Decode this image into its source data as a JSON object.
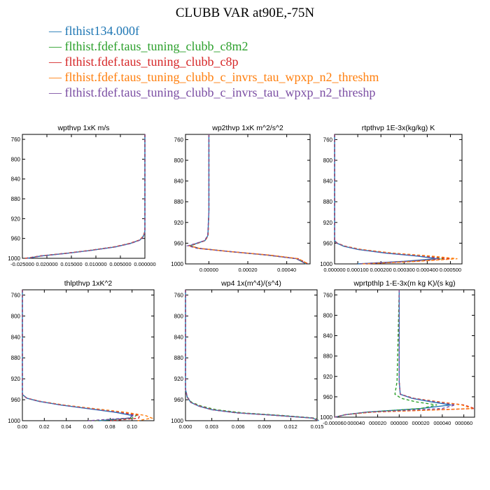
{
  "title": "CLUBB VAR at90E,-75N",
  "colors": [
    "#1f77b4",
    "#2ca02c",
    "#d62728",
    "#ff7f0e",
    "#7b4ea3"
  ],
  "legend": [
    {
      "label": "flthist134.000f",
      "color": "#1f77b4"
    },
    {
      "label": "flthist.fdef.taus_tuning_clubb_c8m2",
      "color": "#2ca02c"
    },
    {
      "label": "flthist.fdef.taus_tuning_clubb_c8p",
      "color": "#d62728"
    },
    {
      "label": "flthist.fdef.taus_tuning_clubb_c_invrs_tau_wpxp_n2_threshm",
      "color": "#ff7f0e"
    },
    {
      "label": "flthist.fdef.taus_tuning_clubb_c_invrs_tau_wpxp_n2_threshp",
      "color": "#7b4ea3"
    }
  ],
  "chart_data": [
    {
      "type": "line",
      "title": "wpthvp  1xK m/s",
      "xlim": [
        -0.025,
        0.0
      ],
      "ylim": [
        1000,
        750
      ],
      "x_ticks": [
        -0.025,
        -0.02,
        -0.015,
        -0.01,
        -0.005,
        0.0
      ],
      "x_tick_labels": [
        "-0.025000",
        "0.020000",
        "0.015000",
        "0.010000",
        "0.005000",
        "0.000000"
      ],
      "y_ticks": [
        760,
        800,
        840,
        880,
        920,
        960,
        1000
      ],
      "y": [
        750,
        900,
        945,
        955,
        963,
        970,
        977,
        984,
        990,
        995,
        1000
      ],
      "series": [
        {
          "values": [
            0.0,
            0.0,
            0.0,
            -0.0003,
            -0.001,
            -0.003,
            -0.006,
            -0.011,
            -0.016,
            -0.021,
            -0.024
          ]
        },
        {
          "values": [
            0.0,
            0.0,
            0.0,
            -0.0003,
            -0.001,
            -0.0031,
            -0.0062,
            -0.0112,
            -0.0162,
            -0.0212,
            -0.0243
          ]
        },
        {
          "values": [
            0.0,
            0.0,
            0.0,
            -0.0003,
            -0.0011,
            -0.0032,
            -0.0063,
            -0.0113,
            -0.0163,
            -0.0213,
            -0.0244
          ]
        },
        {
          "values": [
            0.0,
            0.0,
            0.0,
            -0.0003,
            -0.001,
            -0.003,
            -0.0061,
            -0.0111,
            -0.0161,
            -0.0211,
            -0.0242
          ]
        },
        {
          "values": [
            0.0,
            0.0,
            0.0,
            -0.0002,
            -0.0009,
            -0.0029,
            -0.006,
            -0.011,
            -0.016,
            -0.021,
            -0.0241
          ]
        }
      ]
    },
    {
      "type": "line",
      "title": "wp2thvp  1xK m^2/s^2",
      "xlim": [
        -0.00012,
        0.00052
      ],
      "ylim": [
        1000,
        750
      ],
      "x_ticks": [
        0.0,
        0.0002,
        0.0004
      ],
      "x_tick_labels": [
        "0.00000",
        "0.00020",
        "0.00040"
      ],
      "y_ticks": [
        760,
        800,
        840,
        880,
        920,
        960,
        1000
      ],
      "y": [
        750,
        900,
        945,
        955,
        960,
        965,
        970,
        976,
        983,
        990,
        1000
      ],
      "series": [
        {
          "values": [
            0.0,
            0.0,
            -5e-06,
            -2e-05,
            -6e-05,
            -0.0001,
            -5e-05,
            0.0001,
            0.0003,
            0.00045,
            0.0005
          ]
        },
        {
          "values": [
            0.0,
            0.0,
            -4e-06,
            -1.8e-05,
            -5.5e-05,
            -9.5e-05,
            -5e-05,
            0.0001,
            0.0003,
            0.00045,
            0.0005
          ]
        },
        {
          "values": [
            0.0,
            0.0,
            -4e-06,
            -1.9e-05,
            -5.8e-05,
            -9.8e-05,
            -5e-05,
            0.0001,
            0.00031,
            0.00046,
            0.00051
          ]
        },
        {
          "values": [
            0.0,
            0.0,
            -5e-06,
            -2.1e-05,
            -6e-05,
            -0.000102,
            -5e-05,
            0.0001,
            0.00031,
            0.00046,
            0.00051
          ]
        },
        {
          "values": [
            0.0,
            0.0,
            -6e-06,
            -2.2e-05,
            -6.2e-05,
            -0.000108,
            -6e-05,
            0.0001,
            0.0003,
            0.00045,
            0.0005
          ]
        }
      ]
    },
    {
      "type": "line",
      "title": "rtpthvp  1E-3x(kg/kg) K",
      "xlim": [
        0.0,
        0.00055
      ],
      "ylim": [
        1000,
        750
      ],
      "x_ticks": [
        0.0,
        0.0001,
        0.0002,
        0.0003,
        0.0004,
        0.0005
      ],
      "x_tick_labels": [
        "0.000000",
        "0.000100",
        "0.000200",
        "0.000300",
        "0.000400",
        "0.000500"
      ],
      "y_ticks": [
        760,
        800,
        840,
        880,
        920,
        960,
        1000
      ],
      "y": [
        750,
        900,
        955,
        960,
        966,
        972,
        979,
        985,
        990,
        995,
        1000
      ],
      "series": [
        {
          "values": [
            0.0,
            0.0,
            0.0,
            1e-05,
            4e-05,
            0.0001,
            0.00022,
            0.00036,
            0.00044,
            0.0003,
            0.0001
          ]
        },
        {
          "values": [
            0.0,
            0.0,
            0.0,
            1e-05,
            4.2e-05,
            0.000105,
            0.00023,
            0.00038,
            0.00047,
            0.00032,
            0.00011
          ]
        },
        {
          "values": [
            0.0,
            0.0,
            0.0,
            1e-05,
            4.5e-05,
            0.00011,
            0.00024,
            0.0004,
            0.0005,
            0.00035,
            0.00012
          ]
        },
        {
          "values": [
            0.0,
            0.0,
            0.0,
            1.2e-05,
            4.8e-05,
            0.000115,
            0.00025,
            0.00042,
            0.00053,
            0.00036,
            0.00012
          ]
        },
        {
          "values": [
            0.0,
            0.0,
            0.0,
            1.1e-05,
            4.3e-05,
            0.000102,
            0.00022,
            0.00037,
            0.00045,
            0.00031,
            0.0001
          ]
        }
      ]
    },
    {
      "type": "line",
      "title": "thlpthvp  1xK^2",
      "xlim": [
        0.0,
        0.12
      ],
      "ylim": [
        1000,
        750
      ],
      "x_ticks": [
        0.0,
        0.02,
        0.04,
        0.06,
        0.08,
        0.1
      ],
      "x_tick_labels": [
        "0.00",
        "0.02",
        "0.04",
        "0.06",
        "0.08",
        "0.10"
      ],
      "y_ticks": [
        760,
        800,
        840,
        880,
        920,
        960,
        1000
      ],
      "y": [
        750,
        930,
        950,
        957,
        963,
        970,
        977,
        984,
        990,
        995,
        1000
      ],
      "series": [
        {
          "values": [
            0.0,
            0.0,
            0.0,
            0.004,
            0.015,
            0.035,
            0.06,
            0.085,
            0.1,
            0.098,
            0.07
          ]
        },
        {
          "values": [
            0.0,
            0.0,
            0.0,
            0.004,
            0.015,
            0.036,
            0.062,
            0.088,
            0.104,
            0.1,
            0.065
          ]
        },
        {
          "values": [
            0.0,
            0.0,
            0.0,
            0.004,
            0.016,
            0.037,
            0.064,
            0.09,
            0.107,
            0.106,
            0.08
          ]
        },
        {
          "values": [
            0.0,
            0.0,
            0.0,
            0.004,
            0.016,
            0.038,
            0.066,
            0.094,
            0.112,
            0.118,
            0.105
          ]
        },
        {
          "values": [
            0.0,
            0.0,
            0.0,
            0.004,
            0.015,
            0.035,
            0.061,
            0.087,
            0.102,
            0.096,
            0.06
          ]
        }
      ]
    },
    {
      "type": "line",
      "title": "wp4  1x(m^4)/(s^4)",
      "xlim": [
        0.0,
        0.015
      ],
      "ylim": [
        1000,
        750
      ],
      "x_ticks": [
        0.0,
        0.003,
        0.006,
        0.009,
        0.012,
        0.015
      ],
      "x_tick_labels": [
        "0.000",
        "0.003",
        "0.006",
        "0.009",
        "0.012",
        "0.015"
      ],
      "y_ticks": [
        760,
        800,
        840,
        880,
        920,
        960,
        1000
      ],
      "y": [
        750,
        940,
        955,
        965,
        972,
        979,
        985,
        990,
        995,
        1000
      ],
      "series": [
        {
          "values": [
            0.0,
            0.0,
            0.0002,
            0.0006,
            0.0015,
            0.003,
            0.006,
            0.0105,
            0.0145,
            0.0152
          ]
        },
        {
          "values": [
            0.0,
            0.0,
            0.0002,
            0.0007,
            0.0018,
            0.0035,
            0.0065,
            0.011,
            0.0148,
            0.0152
          ]
        },
        {
          "values": [
            0.0,
            0.0,
            0.0002,
            0.0006,
            0.0016,
            0.0031,
            0.006,
            0.0105,
            0.0146,
            0.0152
          ]
        },
        {
          "values": [
            0.0,
            0.0,
            0.0002,
            0.0006,
            0.0015,
            0.003,
            0.0058,
            0.0102,
            0.0144,
            0.0152
          ]
        },
        {
          "values": [
            0.0,
            0.0,
            0.0002,
            0.0006,
            0.0015,
            0.003,
            0.0058,
            0.0103,
            0.0145,
            0.0152
          ]
        }
      ]
    },
    {
      "type": "line",
      "title": "wprtpthlp  1-E-3x(m kg K)/(s kg)",
      "xlim": [
        -6e-05,
        7e-05
      ],
      "ylim": [
        1000,
        750
      ],
      "x_ticks": [
        -6e-05,
        -4e-05,
        -2e-05,
        0.0,
        2e-05,
        4e-05,
        6e-05
      ],
      "x_tick_labels": [
        "-0.000060",
        "000040",
        "000020",
        "000000",
        "000020",
        "000040",
        "000060"
      ],
      "y_ticks": [
        760,
        800,
        840,
        880,
        920,
        960,
        1000
      ],
      "y": [
        750,
        930,
        955,
        963,
        970,
        976,
        983,
        990,
        995,
        1000
      ],
      "series": [
        {
          "values": [
            0.0,
            0.0,
            1e-06,
            1.2e-05,
            3e-05,
            4.8e-05,
            2e-05,
            -3e-05,
            -5e-05,
            -6e-05
          ]
        },
        {
          "values": [
            0.0,
            -2e-06,
            -4e-06,
            2e-06,
            1.6e-05,
            3.5e-05,
            2e-05,
            -3e-05,
            -5e-05,
            -6e-05
          ]
        },
        {
          "values": [
            0.0,
            0.0,
            1e-06,
            1.4e-05,
            3.8e-05,
            6e-05,
            7e-05,
            -2.5e-05,
            -5e-05,
            -6e-05
          ]
        },
        {
          "values": [
            0.0,
            0.0,
            1e-06,
            1.4e-05,
            3.7e-05,
            5.8e-05,
            6.8e-05,
            -2.5e-05,
            -5e-05,
            -6e-05
          ]
        },
        {
          "values": [
            0.0,
            0.0,
            1e-06,
            1.3e-05,
            3.4e-05,
            5.2e-05,
            4e-05,
            -3e-05,
            -5e-05,
            -6e-05
          ]
        }
      ]
    }
  ]
}
